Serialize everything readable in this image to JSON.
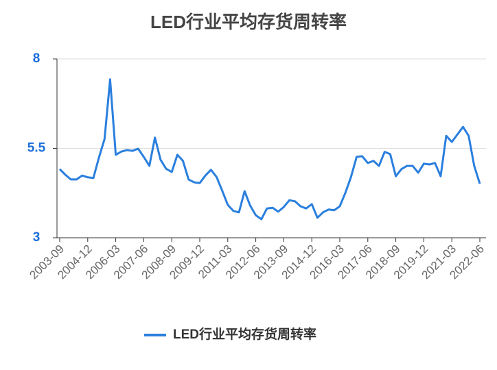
{
  "chart_data": {
    "type": "line",
    "title": "LED行业平均存货周转率",
    "categories": [
      "2003-09",
      null,
      null,
      null,
      null,
      "2004-12",
      null,
      null,
      null,
      null,
      "2006-03",
      null,
      null,
      null,
      null,
      "2007-06",
      null,
      null,
      null,
      null,
      "2008-09",
      null,
      null,
      null,
      null,
      "2009-12",
      null,
      null,
      null,
      null,
      "2011-03",
      null,
      null,
      null,
      null,
      "2012-06",
      null,
      null,
      null,
      null,
      "2013-09",
      null,
      null,
      null,
      null,
      "2014-12",
      null,
      null,
      null,
      null,
      "2016-03",
      null,
      null,
      null,
      null,
      "2017-06",
      null,
      null,
      null,
      null,
      "2018-09",
      null,
      null,
      null,
      null,
      "2019-12",
      null,
      null,
      null,
      null,
      "2021-03",
      null,
      null,
      null,
      null,
      "2022-06"
    ],
    "series": [
      {
        "name": "LED行业平均存货周转率",
        "color": "#2a7fde",
        "values": [
          4.92,
          4.76,
          4.63,
          4.63,
          4.74,
          4.69,
          4.67,
          5.24,
          5.76,
          7.43,
          5.32,
          5.41,
          5.45,
          5.43,
          5.49,
          5.26,
          5.01,
          5.8,
          5.18,
          4.93,
          4.84,
          5.32,
          5.15,
          4.63,
          4.55,
          4.53,
          4.74,
          4.9,
          4.7,
          4.32,
          3.92,
          3.75,
          3.71,
          4.3,
          3.9,
          3.63,
          3.52,
          3.82,
          3.84,
          3.73,
          3.86,
          4.05,
          4.02,
          3.88,
          3.82,
          3.94,
          3.56,
          3.71,
          3.79,
          3.77,
          3.88,
          4.26,
          4.7,
          5.26,
          5.28,
          5.09,
          5.15,
          5.01,
          5.4,
          5.34,
          4.72,
          4.92,
          5.01,
          5.01,
          4.82,
          5.07,
          5.05,
          5.09,
          4.72,
          5.85,
          5.68,
          5.89,
          6.1,
          5.85,
          5.01,
          4.51
        ]
      }
    ],
    "ylim": [
      3,
      8
    ],
    "yticks": [
      3,
      5.5,
      8
    ],
    "grid": true,
    "legend": "bottom"
  }
}
